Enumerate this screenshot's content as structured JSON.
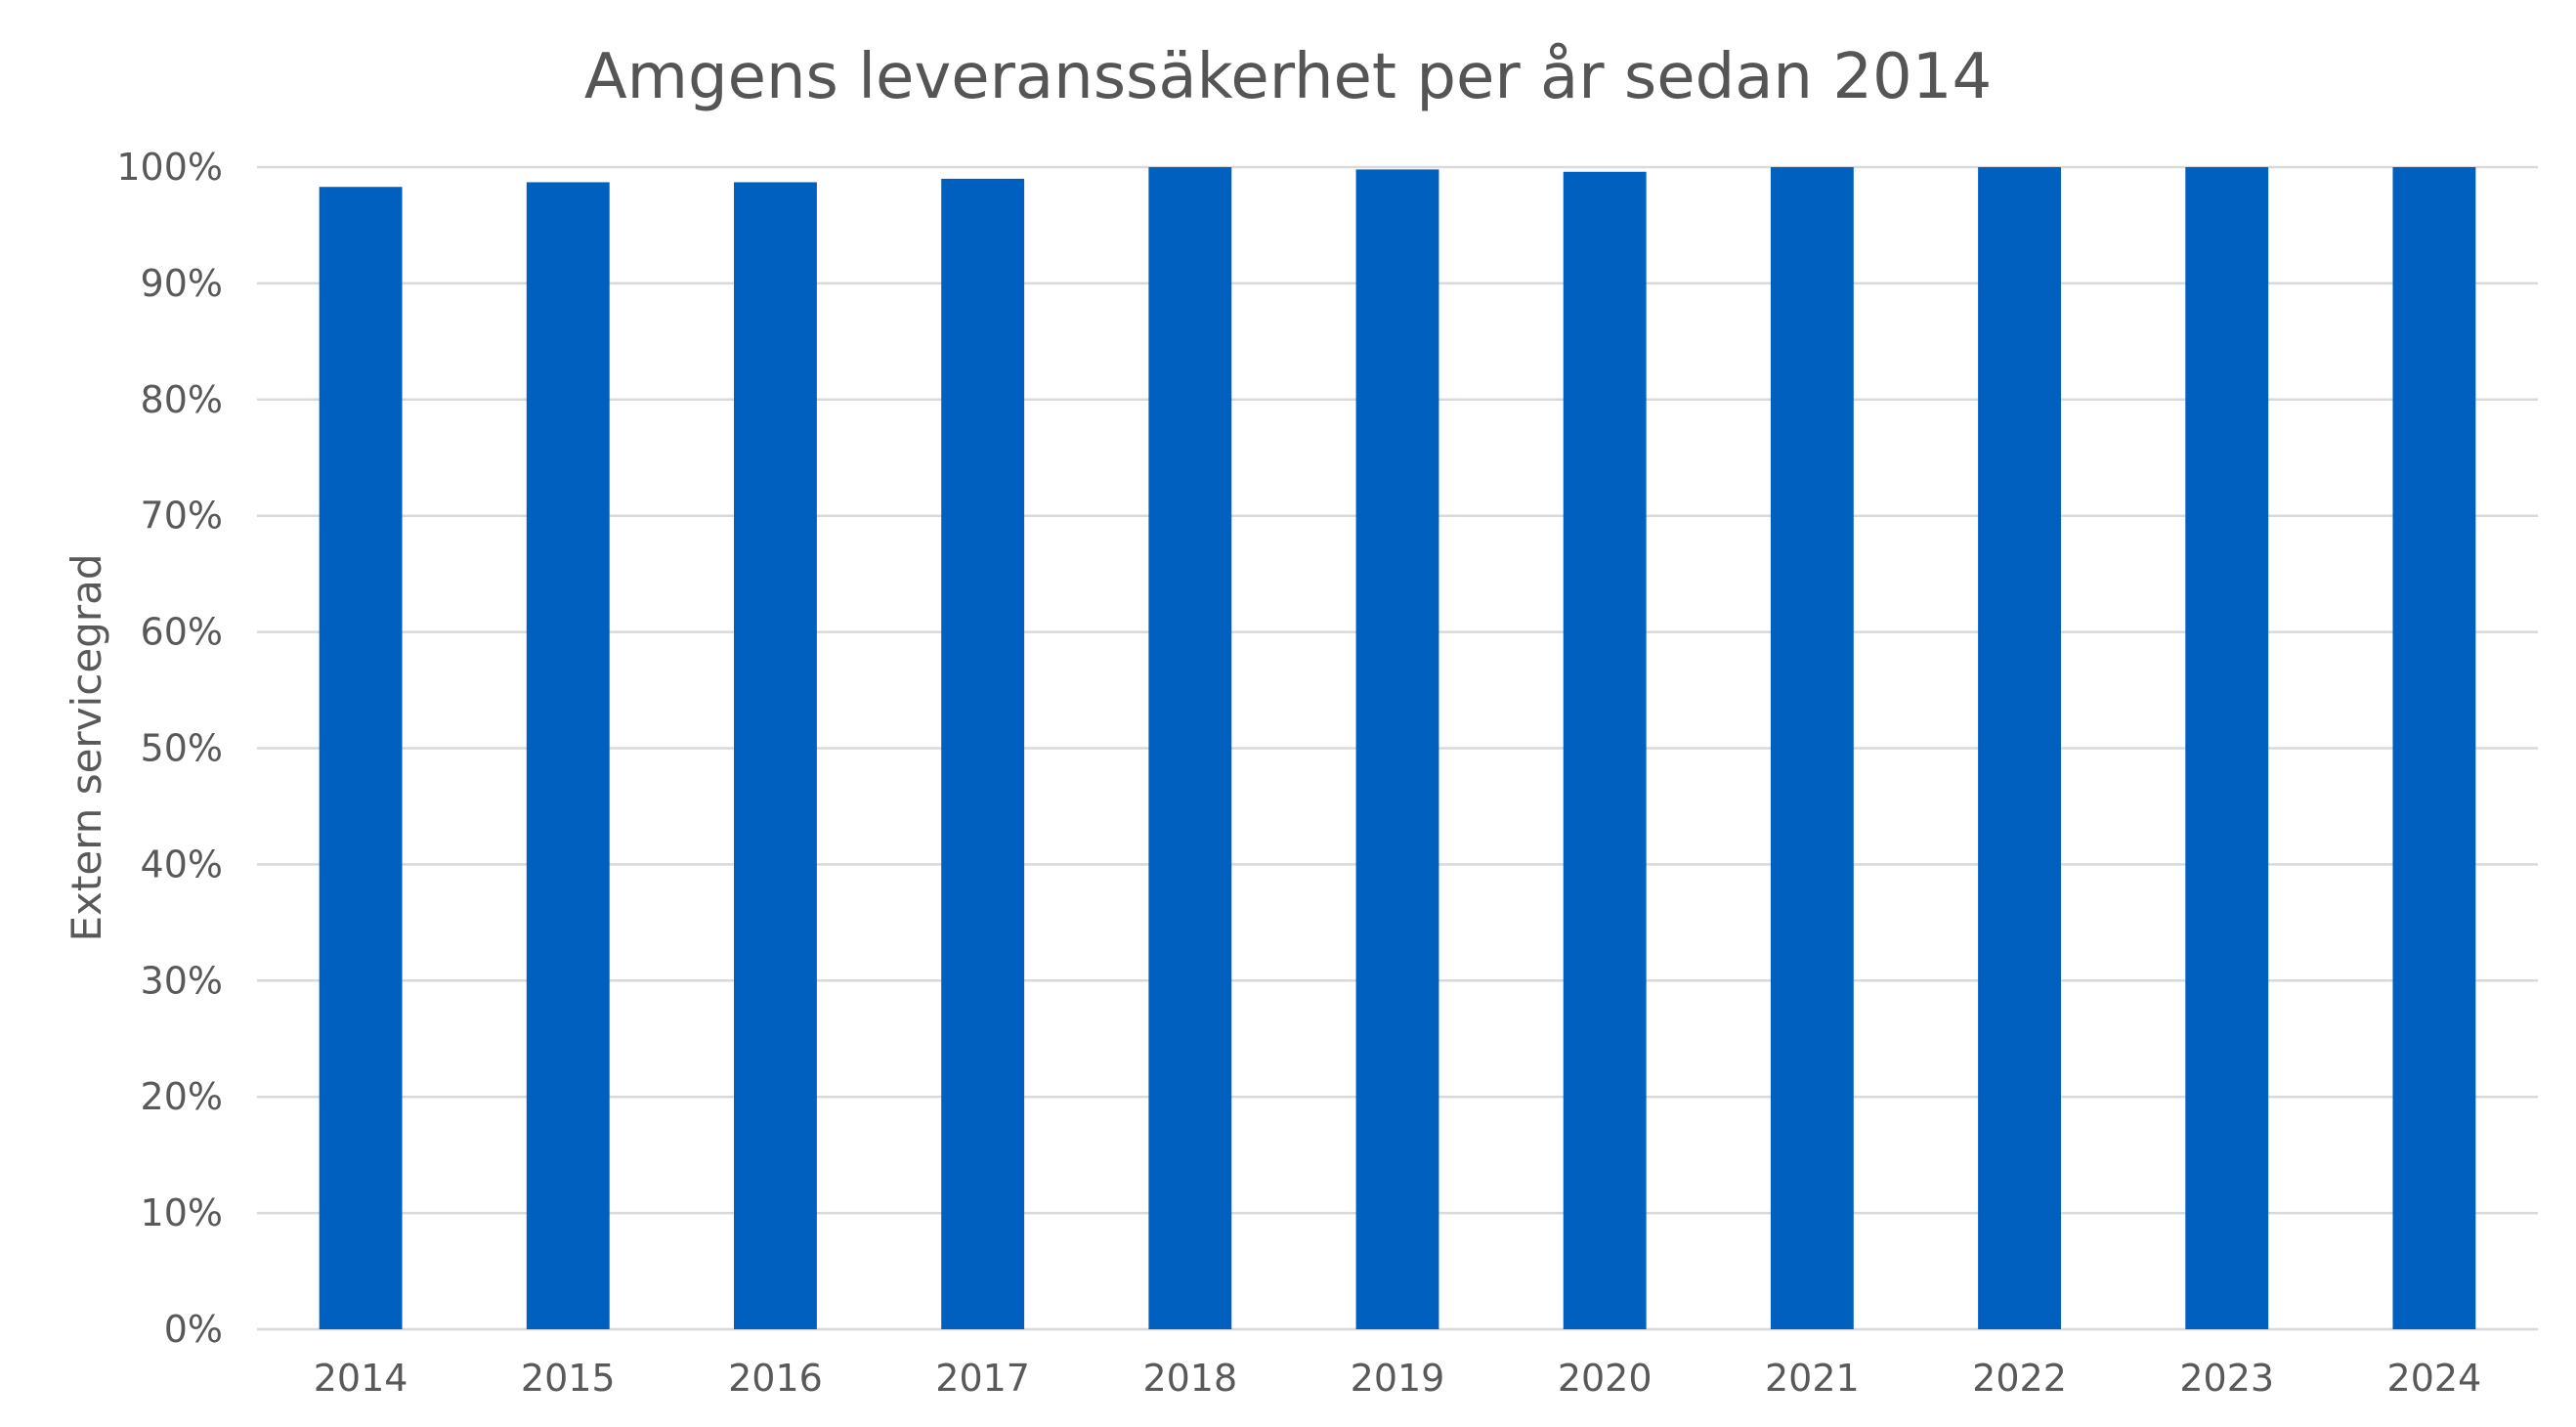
{
  "chart_data": {
    "type": "bar",
    "title": "Amgens leveranssäkerhet per år sedan 2014",
    "xlabel": "",
    "ylabel": "Extern servicegrad",
    "categories": [
      "2014",
      "2015",
      "2016",
      "2017",
      "2018",
      "2019",
      "2020",
      "2021",
      "2022",
      "2023",
      "2024"
    ],
    "values": [
      98.3,
      98.7,
      98.7,
      99.0,
      100.0,
      99.8,
      99.6,
      100.0,
      100.0,
      100.0,
      100.0
    ],
    "ylim": [
      0,
      100
    ],
    "yticks": [
      0,
      10,
      20,
      30,
      40,
      50,
      60,
      70,
      80,
      90,
      100
    ],
    "ytick_labels": [
      "0%",
      "10%",
      "20%",
      "30%",
      "40%",
      "50%",
      "60%",
      "70%",
      "80%",
      "90%",
      "100%"
    ],
    "grid": true,
    "legend": "none",
    "colors": {
      "bar": "#0060C0",
      "gridline": "#d9d9d9",
      "text": "#595959"
    }
  }
}
